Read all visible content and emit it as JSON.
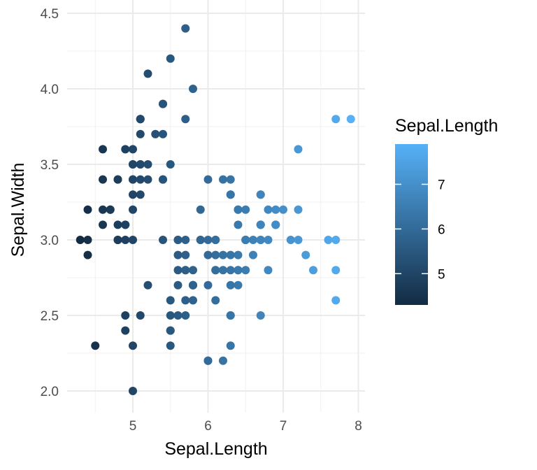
{
  "chart_data": {
    "type": "scatter",
    "xlabel": "Sepal.Length",
    "ylabel": "Sepal.Width",
    "xlim": [
      4.3,
      7.9
    ],
    "ylim": [
      2.0,
      4.4
    ],
    "x_ticks": [
      "5",
      "6",
      "7",
      "8"
    ],
    "y_ticks": [
      "2.0",
      "2.5",
      "3.0",
      "3.5",
      "4.0",
      "4.5"
    ],
    "grid": true,
    "legend": {
      "title": "Sepal.Length",
      "type": "colorbar",
      "placement": "right",
      "range": [
        4.3,
        7.9
      ],
      "ticks": [
        "5",
        "6",
        "7"
      ],
      "low_color": "#132B43",
      "high_color": "#56B1F7"
    },
    "points": [
      [
        5.1,
        3.5
      ],
      [
        4.9,
        3.0
      ],
      [
        4.7,
        3.2
      ],
      [
        4.6,
        3.1
      ],
      [
        5.0,
        3.6
      ],
      [
        5.4,
        3.9
      ],
      [
        4.6,
        3.4
      ],
      [
        5.0,
        3.4
      ],
      [
        4.4,
        2.9
      ],
      [
        4.9,
        3.1
      ],
      [
        5.4,
        3.7
      ],
      [
        4.8,
        3.4
      ],
      [
        4.8,
        3.0
      ],
      [
        4.3,
        3.0
      ],
      [
        5.8,
        4.0
      ],
      [
        5.7,
        4.4
      ],
      [
        5.4,
        3.9
      ],
      [
        5.1,
        3.5
      ],
      [
        5.7,
        3.8
      ],
      [
        5.1,
        3.8
      ],
      [
        5.4,
        3.4
      ],
      [
        5.1,
        3.7
      ],
      [
        4.6,
        3.6
      ],
      [
        5.1,
        3.3
      ],
      [
        4.8,
        3.4
      ],
      [
        5.0,
        3.0
      ],
      [
        5.0,
        3.4
      ],
      [
        5.2,
        3.5
      ],
      [
        5.2,
        3.4
      ],
      [
        4.7,
        3.2
      ],
      [
        4.8,
        3.1
      ],
      [
        5.4,
        3.4
      ],
      [
        5.2,
        4.1
      ],
      [
        5.5,
        4.2
      ],
      [
        4.9,
        3.1
      ],
      [
        5.0,
        3.2
      ],
      [
        5.5,
        3.5
      ],
      [
        4.9,
        3.6
      ],
      [
        4.4,
        3.0
      ],
      [
        5.1,
        3.4
      ],
      [
        5.0,
        3.5
      ],
      [
        4.5,
        2.3
      ],
      [
        4.4,
        3.2
      ],
      [
        5.0,
        3.5
      ],
      [
        5.1,
        3.8
      ],
      [
        4.8,
        3.0
      ],
      [
        5.1,
        3.8
      ],
      [
        4.6,
        3.2
      ],
      [
        5.3,
        3.7
      ],
      [
        5.0,
        3.3
      ],
      [
        7.0,
        3.2
      ],
      [
        6.4,
        3.2
      ],
      [
        6.9,
        3.1
      ],
      [
        5.5,
        2.3
      ],
      [
        6.5,
        2.8
      ],
      [
        5.7,
        2.8
      ],
      [
        6.3,
        3.3
      ],
      [
        4.9,
        2.4
      ],
      [
        6.6,
        2.9
      ],
      [
        5.2,
        2.7
      ],
      [
        5.0,
        2.0
      ],
      [
        5.9,
        3.0
      ],
      [
        6.0,
        2.2
      ],
      [
        6.1,
        2.9
      ],
      [
        5.6,
        2.9
      ],
      [
        6.7,
        3.1
      ],
      [
        5.6,
        3.0
      ],
      [
        5.8,
        2.7
      ],
      [
        6.2,
        2.2
      ],
      [
        5.6,
        2.5
      ],
      [
        5.9,
        3.2
      ],
      [
        6.1,
        2.8
      ],
      [
        6.3,
        2.5
      ],
      [
        6.1,
        2.8
      ],
      [
        6.4,
        2.9
      ],
      [
        6.6,
        3.0
      ],
      [
        6.8,
        2.8
      ],
      [
        6.7,
        3.0
      ],
      [
        6.0,
        2.9
      ],
      [
        5.7,
        2.6
      ],
      [
        5.5,
        2.4
      ],
      [
        5.5,
        2.4
      ],
      [
        5.8,
        2.7
      ],
      [
        6.0,
        2.7
      ],
      [
        5.4,
        3.0
      ],
      [
        6.0,
        3.4
      ],
      [
        6.7,
        3.1
      ],
      [
        6.3,
        2.3
      ],
      [
        5.6,
        3.0
      ],
      [
        5.5,
        2.5
      ],
      [
        5.5,
        2.6
      ],
      [
        6.1,
        3.0
      ],
      [
        5.8,
        2.6
      ],
      [
        5.0,
        2.3
      ],
      [
        5.6,
        2.7
      ],
      [
        5.7,
        3.0
      ],
      [
        5.7,
        2.9
      ],
      [
        6.2,
        2.9
      ],
      [
        5.1,
        2.5
      ],
      [
        5.7,
        2.8
      ],
      [
        6.3,
        3.3
      ],
      [
        5.8,
        2.7
      ],
      [
        7.1,
        3.0
      ],
      [
        6.3,
        2.9
      ],
      [
        6.5,
        3.0
      ],
      [
        7.6,
        3.0
      ],
      [
        4.9,
        2.5
      ],
      [
        7.3,
        2.9
      ],
      [
        6.7,
        2.5
      ],
      [
        7.2,
        3.6
      ],
      [
        6.5,
        3.2
      ],
      [
        6.4,
        2.7
      ],
      [
        6.8,
        3.0
      ],
      [
        5.7,
        2.5
      ],
      [
        5.8,
        2.8
      ],
      [
        6.4,
        3.2
      ],
      [
        6.5,
        3.0
      ],
      [
        7.7,
        3.8
      ],
      [
        7.7,
        2.6
      ],
      [
        6.0,
        2.2
      ],
      [
        6.9,
        3.2
      ],
      [
        5.6,
        2.8
      ],
      [
        7.7,
        2.8
      ],
      [
        6.3,
        2.7
      ],
      [
        6.7,
        3.3
      ],
      [
        7.2,
        3.2
      ],
      [
        6.2,
        2.8
      ],
      [
        6.1,
        3.0
      ],
      [
        6.4,
        2.8
      ],
      [
        7.2,
        3.0
      ],
      [
        7.4,
        2.8
      ],
      [
        7.9,
        3.8
      ],
      [
        6.4,
        2.8
      ],
      [
        6.3,
        2.8
      ],
      [
        6.1,
        2.6
      ],
      [
        7.7,
        3.0
      ],
      [
        6.3,
        3.4
      ],
      [
        6.4,
        3.1
      ],
      [
        6.0,
        3.0
      ],
      [
        6.9,
        3.1
      ],
      [
        6.7,
        3.1
      ],
      [
        6.9,
        3.1
      ],
      [
        5.8,
        2.7
      ],
      [
        6.8,
        3.2
      ],
      [
        6.7,
        3.3
      ],
      [
        6.7,
        3.0
      ],
      [
        6.3,
        2.5
      ],
      [
        6.5,
        3.0
      ],
      [
        6.2,
        3.4
      ],
      [
        5.9,
        3.0
      ]
    ]
  }
}
